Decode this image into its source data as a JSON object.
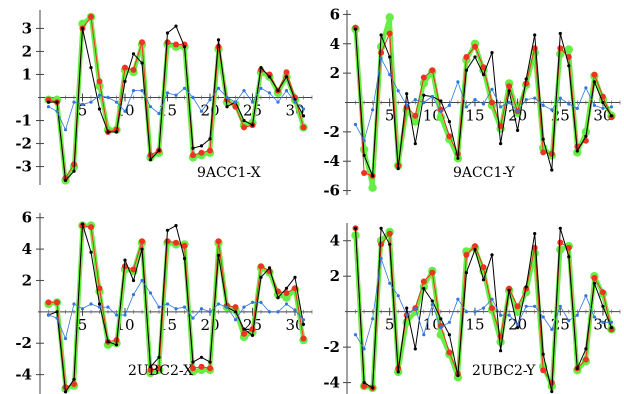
{
  "chart_data": [
    {
      "type": "line",
      "title": "9ACC1-X",
      "x": [
        1,
        2,
        3,
        4,
        5,
        6,
        7,
        8,
        9,
        10,
        11,
        12,
        13,
        14,
        15,
        16,
        17,
        18,
        19,
        20,
        21,
        22,
        23,
        24,
        25,
        26,
        27,
        28,
        29,
        30,
        31
      ],
      "xticks": [
        5,
        10,
        15,
        20,
        25,
        30
      ],
      "yticks": [
        -3,
        -2,
        -1,
        1,
        2,
        3
      ],
      "xlim": [
        0,
        32
      ],
      "ylim": [
        -3.8,
        3.8
      ],
      "series": [
        {
          "color": "#66ee44",
          "values": [
            -0.1,
            -0.1,
            -3.6,
            -3.0,
            3.2,
            3.5,
            0.5,
            -1.4,
            -1.4,
            1.2,
            1.1,
            2.3,
            -2.6,
            -2.4,
            2.3,
            2.2,
            2.2,
            -2.6,
            -2.5,
            -2.4,
            2.1,
            -0.2,
            -0.3,
            -1.2,
            -1.1,
            1.1,
            0.9,
            0.2,
            0.9,
            -0.1,
            -1.3
          ]
        },
        {
          "color": "#ee3322",
          "values": [
            -0.1,
            -0.2,
            -3.5,
            -2.9,
            3.0,
            3.5,
            0.7,
            -1.5,
            -1.4,
            1.3,
            1.2,
            2.4,
            -2.5,
            -2.3,
            2.4,
            2.3,
            2.3,
            -2.5,
            -2.4,
            -2.3,
            2.2,
            -0.1,
            -0.4,
            -1.3,
            -1.2,
            1.2,
            1.0,
            0.3,
            1.1,
            0.0,
            -1.3
          ]
        },
        {
          "color": "#000000",
          "values": [
            -0.2,
            -0.2,
            -3.6,
            -3.2,
            3.0,
            1.3,
            -0.5,
            -1.5,
            -1.5,
            0.7,
            1.9,
            1.5,
            -2.7,
            -2.3,
            2.8,
            3.1,
            2.2,
            -2.2,
            -2.1,
            -1.8,
            2.5,
            -0.4,
            -0.2,
            -1.0,
            -1.2,
            1.3,
            0.9,
            0.3,
            0.9,
            -0.1,
            -0.8
          ]
        },
        {
          "color": "#3377dd",
          "values": [
            -0.4,
            -0.6,
            -1.4,
            -0.2,
            -0.3,
            -0.2,
            0.1,
            0.0,
            -0.2,
            -0.6,
            0.3,
            0.3,
            -0.4,
            -0.7,
            0.2,
            0.1,
            0.4,
            0.0,
            -0.6,
            -0.1,
            0.4,
            0.0,
            -0.2,
            0.3,
            -0.2,
            0.4,
            0.2,
            -0.2,
            0.3,
            -0.2,
            -0.5
          ]
        }
      ]
    },
    {
      "type": "line",
      "title": "9ACC1-Y",
      "x": [
        1,
        2,
        3,
        4,
        5,
        6,
        7,
        8,
        9,
        10,
        11,
        12,
        13,
        14,
        15,
        16,
        17,
        18,
        19,
        20,
        21,
        22,
        23,
        24,
        25,
        26,
        27,
        28,
        29,
        30,
        31
      ],
      "xticks": [
        5,
        10,
        15,
        20,
        25,
        30
      ],
      "yticks": [
        -6,
        -4,
        -2,
        2,
        4,
        6
      ],
      "xlim": [
        0,
        32
      ],
      "ylim": [
        -6.3,
        6.3
      ],
      "series": [
        {
          "color": "#66ee44",
          "values": [
            5.0,
            -3.2,
            -5.8,
            3.8,
            5.8,
            -4.3,
            -0.5,
            -1.3,
            1.3,
            2.1,
            -1.0,
            -2.5,
            -3.8,
            2.9,
            4.0,
            2.2,
            -0.2,
            -1.8,
            1.3,
            -0.7,
            1.2,
            3.4,
            -3.1,
            -3.6,
            3.3,
            3.6,
            -3.4,
            -2.0,
            1.8,
            0.2,
            -0.9
          ]
        },
        {
          "color": "#ee3322",
          "values": [
            5.1,
            -4.8,
            -5.0,
            3.4,
            4.7,
            -4.3,
            -0.3,
            -0.9,
            1.7,
            2.2,
            -0.5,
            -2.3,
            -3.5,
            3.1,
            3.8,
            2.4,
            0.0,
            -1.6,
            1.1,
            -0.6,
            1.3,
            3.7,
            -3.4,
            -3.5,
            3.7,
            3.1,
            -3.0,
            -2.6,
            1.9,
            0.4,
            -1.0
          ]
        },
        {
          "color": "#000000",
          "values": [
            5.0,
            -3.6,
            -5.0,
            4.6,
            3.1,
            -4.5,
            0.6,
            -2.8,
            0.5,
            0.4,
            0.1,
            -1.3,
            -3.8,
            2.2,
            3.1,
            1.9,
            3.4,
            -2.8,
            0.8,
            -1.9,
            1.6,
            4.6,
            -2.5,
            -4.6,
            4.7,
            2.5,
            -3.3,
            -2.3,
            1.4,
            0.0,
            -0.9
          ]
        },
        {
          "color": "#3377dd",
          "values": [
            -1.5,
            -2.6,
            -0.5,
            3.0,
            1.9,
            0.8,
            -0.2,
            0.2,
            0.0,
            0.4,
            -0.6,
            -0.2,
            1.4,
            -0.3,
            0.2,
            -0.1,
            0.9,
            -0.3,
            0.0,
            -0.6,
            0.2,
            0.3,
            -0.2,
            -0.5,
            0.3,
            -0.1,
            -0.4,
            1.0,
            -0.2,
            -0.4,
            -0.3
          ]
        }
      ]
    },
    {
      "type": "line",
      "title": "2UBC2-X",
      "x": [
        1,
        2,
        3,
        4,
        5,
        6,
        7,
        8,
        9,
        10,
        11,
        12,
        13,
        14,
        15,
        16,
        17,
        18,
        19,
        20,
        21,
        22,
        23,
        24,
        25,
        26,
        27,
        28,
        29,
        30,
        31
      ],
      "xticks": [
        5,
        10,
        15,
        20,
        25,
        30
      ],
      "yticks": [
        -4,
        -2,
        2,
        4,
        6
      ],
      "xlim": [
        0,
        32
      ],
      "ylim": [
        -5.3,
        6.3
      ],
      "series": [
        {
          "color": "#66ee44",
          "values": [
            0.5,
            0.6,
            -4.9,
            -4.7,
            5.5,
            5.5,
            1.3,
            -2.1,
            -2.0,
            2.7,
            2.6,
            4.4,
            -3.9,
            -3.7,
            4.4,
            4.3,
            4.3,
            -3.8,
            -3.7,
            -3.7,
            4.4,
            0.3,
            0.1,
            -1.6,
            -1.3,
            2.8,
            2.5,
            1.1,
            0.9,
            1.4,
            -1.8
          ]
        },
        {
          "color": "#ee3322",
          "values": [
            0.6,
            0.6,
            -4.8,
            -4.6,
            5.5,
            5.4,
            1.5,
            -1.9,
            -1.8,
            2.9,
            2.7,
            4.5,
            -3.7,
            -3.6,
            4.5,
            4.4,
            4.2,
            -3.6,
            -3.5,
            -3.6,
            4.5,
            0.4,
            0.3,
            -1.4,
            -1.1,
            2.9,
            2.6,
            1.3,
            1.2,
            1.5,
            -1.7
          ]
        },
        {
          "color": "#000000",
          "values": [
            -0.2,
            0.0,
            -5.1,
            -4.3,
            5.6,
            3.8,
            0.5,
            -1.9,
            -2.1,
            3.3,
            2.0,
            4.0,
            -3.5,
            -2.9,
            5.2,
            5.5,
            3.4,
            -3.2,
            -2.9,
            -3.2,
            3.6,
            0.3,
            0.0,
            -1.1,
            -1.5,
            2.2,
            2.8,
            0.9,
            1.5,
            2.2,
            -0.8
          ]
        },
        {
          "color": "#3377dd",
          "values": [
            -0.2,
            -0.4,
            -1.7,
            0.5,
            0.2,
            0.5,
            0.3,
            0.3,
            -0.2,
            -0.2,
            1.1,
            2.0,
            1.2,
            0.3,
            0.5,
            0.2,
            0.3,
            -0.4,
            0.2,
            0.0,
            0.5,
            0.3,
            -0.5,
            0.3,
            0.6,
            0.6,
            0.0,
            0.0,
            0.5,
            0.1,
            -0.5
          ]
        }
      ]
    },
    {
      "type": "line",
      "title": "2UBC2-Y",
      "x": [
        1,
        2,
        3,
        4,
        5,
        6,
        7,
        8,
        9,
        10,
        11,
        12,
        13,
        14,
        15,
        16,
        17,
        18,
        19,
        20,
        21,
        22,
        23,
        24,
        25,
        26,
        27,
        28,
        29,
        30,
        31
      ],
      "xticks": [
        5,
        10,
        15,
        20,
        25,
        30
      ],
      "yticks": [
        -4,
        -2,
        2,
        4
      ],
      "xlim": [
        0,
        32
      ],
      "ylim": [
        -4.7,
        5.0
      ],
      "series": [
        {
          "color": "#66ee44",
          "values": [
            4.3,
            -4.2,
            -4.3,
            4.0,
            4.5,
            -3.4,
            -0.6,
            0.0,
            1.4,
            2.3,
            -1.3,
            -2.4,
            -3.7,
            3.4,
            3.6,
            2.3,
            0.1,
            -1.7,
            1.2,
            0.0,
            1.1,
            3.3,
            -3.1,
            -4.2,
            3.5,
            3.7,
            -3.3,
            -2.8,
            2.0,
            1.0,
            -1.0
          ]
        },
        {
          "color": "#ee3322",
          "values": [
            4.7,
            -4.2,
            -4.3,
            3.8,
            4.4,
            -3.2,
            -0.2,
            0.2,
            1.7,
            2.2,
            -0.8,
            -2.3,
            -3.5,
            3.2,
            3.7,
            2.5,
            0.2,
            -1.4,
            1.3,
            0.3,
            1.3,
            3.6,
            -3.3,
            -4.0,
            3.9,
            3.6,
            -3.2,
            -2.7,
            1.9,
            1.1,
            -1.0
          ]
        },
        {
          "color": "#000000",
          "values": [
            4.7,
            -4.0,
            -4.3,
            4.7,
            3.8,
            -3.4,
            0.2,
            -2.1,
            1.3,
            0.6,
            -0.4,
            -1.3,
            -3.6,
            2.2,
            3.5,
            1.8,
            3.2,
            -2.2,
            1.2,
            -0.9,
            1.4,
            4.4,
            -2.4,
            -4.5,
            4.7,
            3.1,
            -3.2,
            -2.1,
            1.6,
            0.3,
            -0.9
          ]
        },
        {
          "color": "#3377dd",
          "values": [
            -1.3,
            -2.1,
            -0.4,
            3.0,
            1.6,
            0.9,
            -0.2,
            0.2,
            -1.3,
            0.4,
            -0.9,
            -0.6,
            0.7,
            0.0,
            0.0,
            0.2,
            0.7,
            -0.2,
            -0.2,
            -0.7,
            0.3,
            0.3,
            -0.3,
            -1.0,
            0.3,
            -0.5,
            -0.2,
            0.9,
            -0.3,
            -0.6,
            -0.6
          ]
        }
      ]
    }
  ]
}
